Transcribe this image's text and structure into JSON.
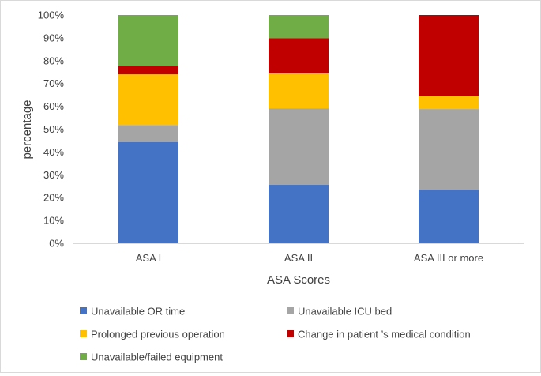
{
  "chart_data": {
    "type": "bar",
    "stacked": true,
    "percent": true,
    "title": "",
    "xlabel": "ASA Scores",
    "ylabel": "percentage",
    "ylim": [
      0,
      100
    ],
    "yticks": [
      "0%",
      "10%",
      "20%",
      "30%",
      "40%",
      "50%",
      "60%",
      "70%",
      "80%",
      "90%",
      "100%"
    ],
    "categories": [
      "ASA I",
      "ASA II",
      "ASA III or more"
    ],
    "grid": false,
    "legend_position": "bottom",
    "series": [
      {
        "name": "Unavailable OR time",
        "color": "#4472C4",
        "values": [
          44.4,
          25.6,
          23.5
        ]
      },
      {
        "name": "Unavailable ICU bed",
        "color": "#A5A5A5",
        "values": [
          7.4,
          33.4,
          35.3
        ]
      },
      {
        "name": "Prolonged previous operation",
        "color": "#FFC000",
        "values": [
          22.2,
          15.4,
          5.9
        ]
      },
      {
        "name": "Change in patient ’s medical condition",
        "color": "#C00000",
        "values": [
          3.7,
          15.4,
          35.3
        ]
      },
      {
        "name": "Unavailable/failed equipment",
        "color": "#70AD47",
        "values": [
          22.3,
          10.2,
          0
        ]
      }
    ]
  }
}
